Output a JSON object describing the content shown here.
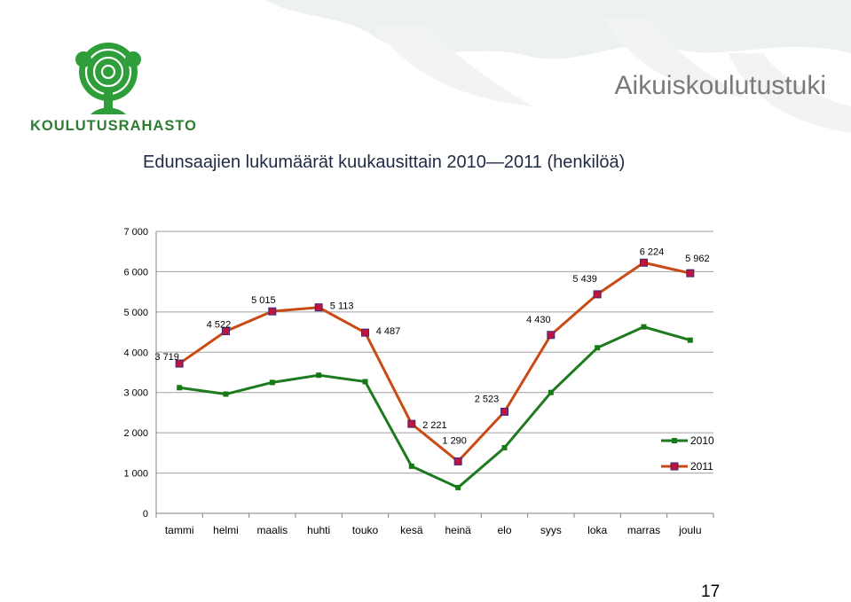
{
  "header": {
    "logo_text": "KOULUTUSRAHASTO",
    "section_title": "Aikuiskoulutustuki"
  },
  "slide": {
    "title": "Edunsaajien lukumäärät kuukausittain 2010—2011 (henkilöä)",
    "page_number": "17"
  },
  "colors": {
    "series_2010": "#1e7a1e",
    "series_2011": "#c94a14",
    "marker_2011": "#c0143c",
    "marker_2010": "#157a15"
  },
  "chart_data": {
    "type": "line",
    "categories": [
      "tammi",
      "helmi",
      "maalis",
      "huhti",
      "touko",
      "kesä",
      "heinä",
      "elo",
      "syys",
      "loka",
      "marras",
      "joulu"
    ],
    "series": [
      {
        "name": "2010",
        "values": [
          3120,
          2960,
          3250,
          3430,
          3270,
          1170,
          640,
          1630,
          3000,
          4110,
          4630,
          4300
        ]
      },
      {
        "name": "2011",
        "values": [
          3719,
          4522,
          5015,
          5113,
          4487,
          2221,
          1290,
          2523,
          4430,
          5439,
          6224,
          5962
        ],
        "labels": [
          "3 719",
          "4 522",
          "5 015",
          "5 113",
          "4 487",
          "2 221",
          "1 290",
          "2 523",
          "4 430",
          "5 439",
          "6 224",
          "5 962"
        ]
      }
    ],
    "ylim": [
      0,
      7000
    ],
    "yticks": [
      0,
      1000,
      2000,
      3000,
      4000,
      5000,
      6000,
      7000
    ],
    "ytick_labels": [
      "0",
      "1 000",
      "2 000",
      "3 000",
      "4 000",
      "5 000",
      "6 000",
      "7 000"
    ],
    "grid": true,
    "legend_position": "right"
  }
}
